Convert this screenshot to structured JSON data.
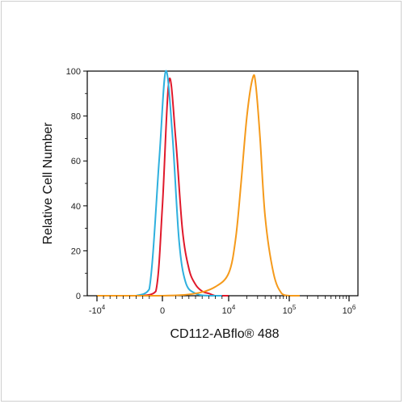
{
  "chart_data": {
    "type": "line",
    "title": "",
    "xlabel": "CD112-ABflo® 488",
    "ylabel": "Relative Cell Number",
    "x_scale": "biexponential",
    "y_range": [
      0,
      100
    ],
    "y_ticks": [
      0,
      20,
      40,
      60,
      80,
      100
    ],
    "x_ticks": [
      {
        "value": -10000,
        "base": "-10",
        "exp": "4"
      },
      {
        "value": 0,
        "base": "0",
        "exp": ""
      },
      {
        "value": 10000,
        "base": "10",
        "exp": "4"
      },
      {
        "value": 100000,
        "base": "10",
        "exp": "5"
      },
      {
        "value": 1000000,
        "base": "10",
        "exp": "6"
      }
    ],
    "grid": false,
    "legend": "none",
    "series": [
      {
        "color": "#e0192b",
        "x": [
          -3000,
          -1000,
          0,
          1000,
          2000,
          3000,
          4000,
          5000,
          6000,
          7000,
          8000,
          9000,
          10000
        ],
        "y": [
          0,
          2,
          40,
          96,
          70,
          30,
          12,
          5,
          2,
          1,
          0,
          0,
          0
        ]
      },
      {
        "color": "#2fb0de",
        "x": [
          -4000,
          -2000,
          -500,
          500,
          1500,
          2500,
          3500,
          5000,
          7000,
          9000
        ],
        "y": [
          0,
          3,
          60,
          100,
          72,
          25,
          6,
          1,
          0,
          0
        ]
      },
      {
        "color": "#f59a1b",
        "x": [
          -10000,
          0,
          5000,
          8000,
          10000,
          13000,
          16000,
          20000,
          25000,
          28000,
          33000,
          40000,
          55000,
          75000,
          100000,
          150000
        ],
        "y": [
          0,
          0,
          1,
          4,
          10,
          25,
          50,
          80,
          97,
          94,
          70,
          35,
          10,
          1,
          0,
          0
        ]
      }
    ]
  }
}
